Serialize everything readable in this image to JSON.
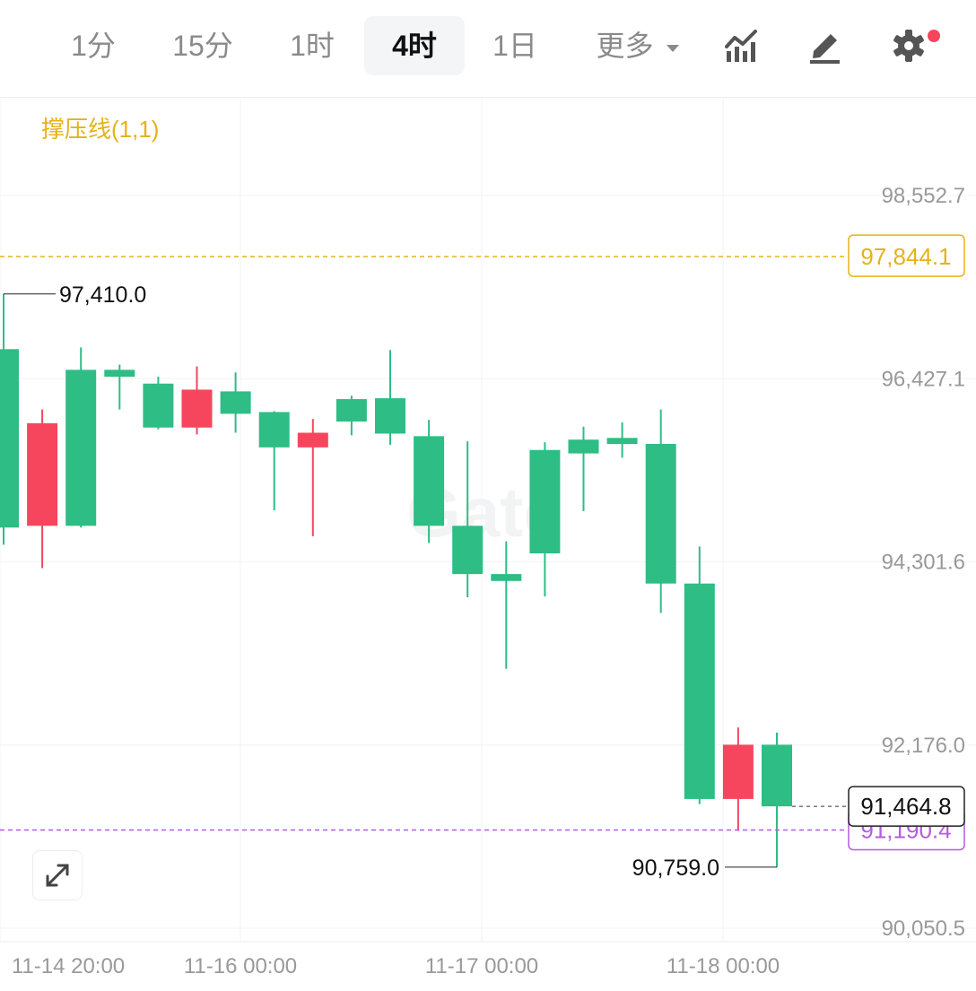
{
  "toolbar": {
    "tabs": [
      {
        "label": "1分"
      },
      {
        "label": "15分"
      },
      {
        "label": "1时"
      },
      {
        "label": "4时",
        "active": true
      },
      {
        "label": "1日"
      }
    ],
    "more_label": "更多",
    "icons": [
      "indicator-chart-icon",
      "draw-pen-icon",
      "settings-gear-icon"
    ],
    "notification_dot_color": "#f6465d"
  },
  "indicator": {
    "label": "撑压线(1,1)",
    "color": "#e5b21a"
  },
  "watermark": "Gate",
  "chart_data": {
    "type": "candlestick",
    "timeframe": "4时",
    "y_ticks": [
      "98,552.7",
      "96,427.1",
      "94,301.6",
      "92,176.0",
      "90,050.5"
    ],
    "y_tick_values": [
      98552.7,
      96427.1,
      94301.6,
      92176.0,
      90050.5
    ],
    "x_ticks": [
      "11-14 20:00",
      "11-16 00:00",
      "11-17 00:00",
      "11-18 00:00"
    ],
    "grid": true,
    "up_color": "#2ebd85",
    "down_color": "#f6465d",
    "candles": [
      {
        "open": 94700,
        "high": 97410,
        "low": 94500,
        "close": 96770
      },
      {
        "open": 95910,
        "high": 96070,
        "low": 94230,
        "close": 94720
      },
      {
        "open": 94720,
        "high": 96790,
        "low": 94700,
        "close": 96530
      },
      {
        "open": 96450,
        "high": 96590,
        "low": 96070,
        "close": 96530
      },
      {
        "open": 95860,
        "high": 96450,
        "low": 95840,
        "close": 96370
      },
      {
        "open": 96300,
        "high": 96570,
        "low": 95780,
        "close": 95860
      },
      {
        "open": 96020,
        "high": 96500,
        "low": 95800,
        "close": 96280
      },
      {
        "open": 95630,
        "high": 96050,
        "low": 94900,
        "close": 96040
      },
      {
        "open": 95800,
        "high": 95960,
        "low": 94600,
        "close": 95630
      },
      {
        "open": 95930,
        "high": 96230,
        "low": 95770,
        "close": 96190
      },
      {
        "open": 95790,
        "high": 96760,
        "low": 95660,
        "close": 96200
      },
      {
        "open": 94720,
        "high": 95950,
        "low": 94520,
        "close": 95760
      },
      {
        "open": 94160,
        "high": 95700,
        "low": 93890,
        "close": 94720
      },
      {
        "open": 94080,
        "high": 94540,
        "low": 93060,
        "close": 94160
      },
      {
        "open": 94400,
        "high": 95690,
        "low": 93900,
        "close": 95600
      },
      {
        "open": 95560,
        "high": 95870,
        "low": 94890,
        "close": 95720
      },
      {
        "open": 95670,
        "high": 95920,
        "low": 95510,
        "close": 95740
      },
      {
        "open": 94050,
        "high": 96070,
        "low": 93710,
        "close": 95670
      },
      {
        "open": 91550,
        "high": 94480,
        "low": 91490,
        "close": 94050
      },
      {
        "open": 92180,
        "high": 92380,
        "low": 91180,
        "close": 91550
      },
      {
        "open": 91464.8,
        "high": 92320,
        "low": 90759.0,
        "close": 92180
      }
    ],
    "high_marker": "97,410.0",
    "low_marker": "90,759.0",
    "resistance_line": {
      "value": 97844.1,
      "label": "97,844.1",
      "color": "#e5b21a"
    },
    "support_line": {
      "value": 91190.4,
      "label": "91,190.4",
      "color": "#b45ae0"
    },
    "last_price": {
      "value": 91464.8,
      "label": "91,464.8"
    }
  }
}
